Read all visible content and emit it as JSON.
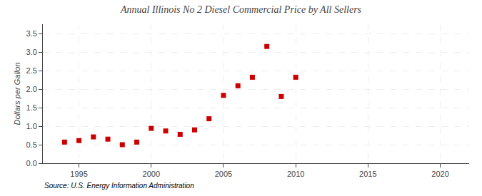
{
  "chart_data": {
    "type": "scatter",
    "title": "Annual Illinois No 2 Diesel Commercial Price by All Sellers",
    "ylabel": "Dollars per Gallon",
    "annotations": [
      "Source: U.S. Energy Information Administration"
    ],
    "x": [
      1994,
      1995,
      1996,
      1997,
      1998,
      1999,
      2000,
      2001,
      2002,
      2003,
      2004,
      2005,
      2006,
      2007,
      2008,
      2009,
      2010
    ],
    "values": [
      0.57,
      0.61,
      0.71,
      0.65,
      0.5,
      0.57,
      0.94,
      0.87,
      0.78,
      0.9,
      1.2,
      1.83,
      2.09,
      2.32,
      3.15,
      1.8,
      2.32
    ],
    "color": "#cc0000",
    "marker": "square",
    "xlim": [
      1992.5,
      2022
    ],
    "ylim": [
      0.0,
      3.75
    ],
    "xticks": [
      1995,
      2000,
      2005,
      2010,
      2015,
      2020
    ],
    "yticks": [
      {
        "value": 0,
        "label": "0.0"
      },
      0.5,
      {
        "value": 1,
        "label": "1.0"
      },
      1.5,
      {
        "value": 2,
        "label": "2.0"
      },
      2.5,
      {
        "value": 3,
        "label": "3.0"
      },
      3.5
    ],
    "grid": true
  }
}
